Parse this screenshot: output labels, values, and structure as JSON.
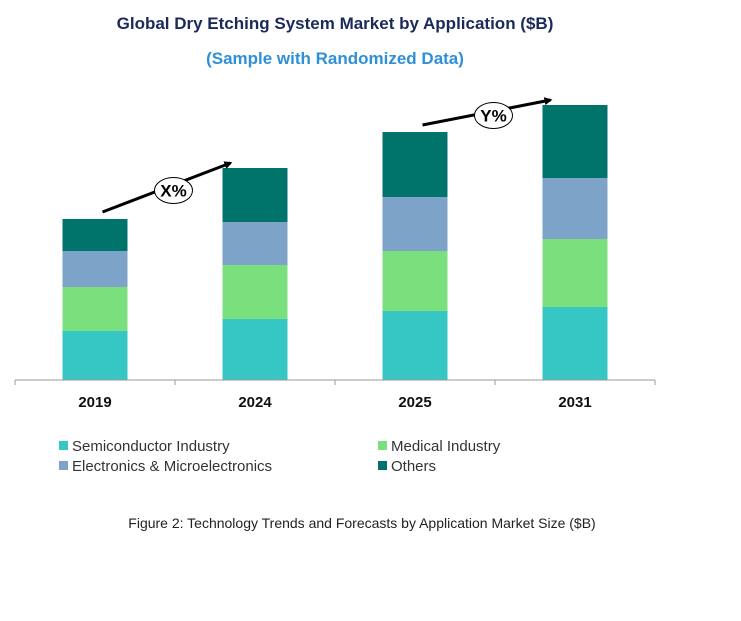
{
  "chart_data": {
    "type": "bar",
    "stacked": true,
    "title": "Global Dry Etching System Market by Application ($B)",
    "subtitle": "(Sample with Randomized Data)",
    "caption": "Figure 2: Technology  Trends  and Forecasts by Application Market Size ($B)",
    "categories": [
      "2019",
      "2024",
      "2025",
      "2031"
    ],
    "series": [
      {
        "name": "Semiconductor Industry",
        "color": "#36c6c4",
        "values": [
          4.9,
          6.1,
          6.9,
          7.3
        ]
      },
      {
        "name": "Medical Industry",
        "color": "#7ae07e",
        "values": [
          4.4,
          5.4,
          6.0,
          6.8
        ]
      },
      {
        "name": "Electronics & Microelectronics",
        "color": "#7da3c8",
        "values": [
          3.6,
          4.3,
          5.4,
          6.1
        ]
      },
      {
        "name": "Others",
        "color": "#00736b",
        "values": [
          3.2,
          5.4,
          6.5,
          7.3
        ]
      }
    ],
    "annotations": [
      {
        "label": "X%",
        "from": "2019",
        "to": "2024"
      },
      {
        "label": "Y%",
        "from": "2025",
        "to": "2031"
      }
    ],
    "ylim": [
      0,
      30
    ],
    "y_axis_shown": false,
    "grid": false,
    "legend": "bottom"
  }
}
